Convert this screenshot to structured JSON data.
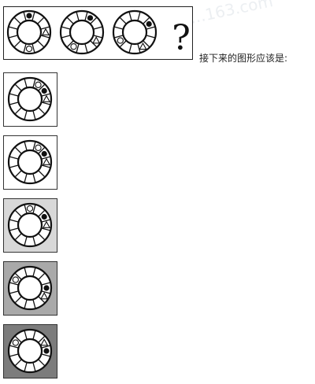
{
  "prompt": "接下来的图形应该是:",
  "question_mark": "?",
  "watermark": "…163.com",
  "option_backgrounds": [
    "#ffffff",
    "#ffffff",
    "#d8d8d8",
    "#a9a9a9",
    "#7c7c7c"
  ],
  "question_figures": [
    {
      "symbols": [
        {
          "seg": 0,
          "kind": "solid-dot"
        },
        {
          "seg": 3,
          "kind": "triangle"
        },
        {
          "seg": 6,
          "kind": "ring"
        }
      ]
    },
    {
      "symbols": [
        {
          "seg": 1,
          "kind": "solid-dot"
        },
        {
          "seg": 4,
          "kind": "triangle"
        },
        {
          "seg": 7,
          "kind": "ring"
        }
      ]
    },
    {
      "symbols": [
        {
          "seg": 2,
          "kind": "solid-dot"
        },
        {
          "seg": 5,
          "kind": "triangle"
        },
        {
          "seg": 8,
          "kind": "ring"
        }
      ]
    }
  ],
  "options": [
    {
      "symbols": [
        {
          "seg": 1,
          "kind": "ring"
        },
        {
          "seg": 2,
          "kind": "solid-dot"
        },
        {
          "seg": 3,
          "kind": "triangle"
        }
      ]
    },
    {
      "symbols": [
        {
          "seg": 1,
          "kind": "ring"
        },
        {
          "seg": 2,
          "kind": "solid-dot"
        },
        {
          "seg": 3,
          "kind": "triangle"
        }
      ]
    },
    {
      "symbols": [
        {
          "seg": 2,
          "kind": "solid-dot"
        },
        {
          "seg": 3,
          "kind": "triangle"
        },
        {
          "seg": 0,
          "kind": "ring"
        }
      ]
    },
    {
      "symbols": [
        {
          "seg": 10,
          "kind": "ring"
        },
        {
          "seg": 3,
          "kind": "solid-dot"
        },
        {
          "seg": 4,
          "kind": "triangle"
        }
      ]
    },
    {
      "symbols": [
        {
          "seg": 10,
          "kind": "ring"
        },
        {
          "seg": 3,
          "kind": "solid-dot"
        },
        {
          "seg": 2,
          "kind": "triangle"
        }
      ]
    }
  ]
}
